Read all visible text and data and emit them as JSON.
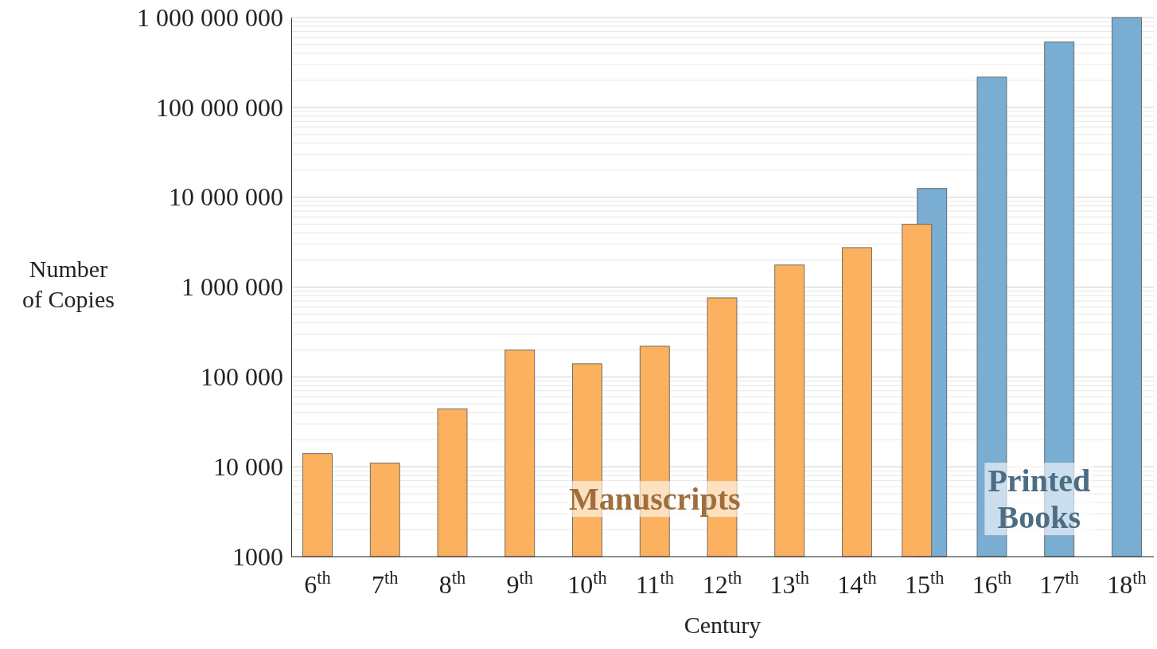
{
  "chart_data": {
    "type": "bar",
    "xlabel": "Century",
    "ylabel": "Number of Copies",
    "categories": [
      "6$^{th}$",
      "7$^{th}$",
      "8$^{th}$",
      "9$^{th}$",
      "10$^{th}$",
      "11$^{th}$",
      "12$^{th}$",
      "13$^{th}$",
      "14$^{th}$",
      "15$^{th}$",
      "16$^{th}$",
      "17$^{th}$",
      "18$^{th}$"
    ],
    "series": [
      {
        "name": "Manuscripts",
        "color": "#fbb15f",
        "values": [
          14000,
          11000,
          44000,
          200000,
          140000,
          220000,
          760000,
          1760000,
          2750000,
          5000000,
          null,
          null,
          null
        ]
      },
      {
        "name": "Printed Books",
        "color": "#7aadd2",
        "values": [
          null,
          null,
          null,
          null,
          null,
          null,
          null,
          null,
          null,
          12500000,
          217000000,
          533000000,
          1000000000
        ]
      }
    ],
    "log": true,
    "ylim": [
      1000,
      1000000000
    ],
    "yticks": [
      {
        "value": 1000,
        "label": "1000"
      },
      {
        "value": 10000,
        "label": "10 000"
      },
      {
        "value": 100000,
        "label": "100 000"
      },
      {
        "value": 1000000,
        "label": "1 000 000"
      },
      {
        "value": 10000000,
        "label": "10 000 000"
      },
      {
        "value": 100000000,
        "label": "100 000 000"
      },
      {
        "value": 1000000000,
        "label": "1 000 000 000"
      }
    ],
    "grid": "y"
  }
}
